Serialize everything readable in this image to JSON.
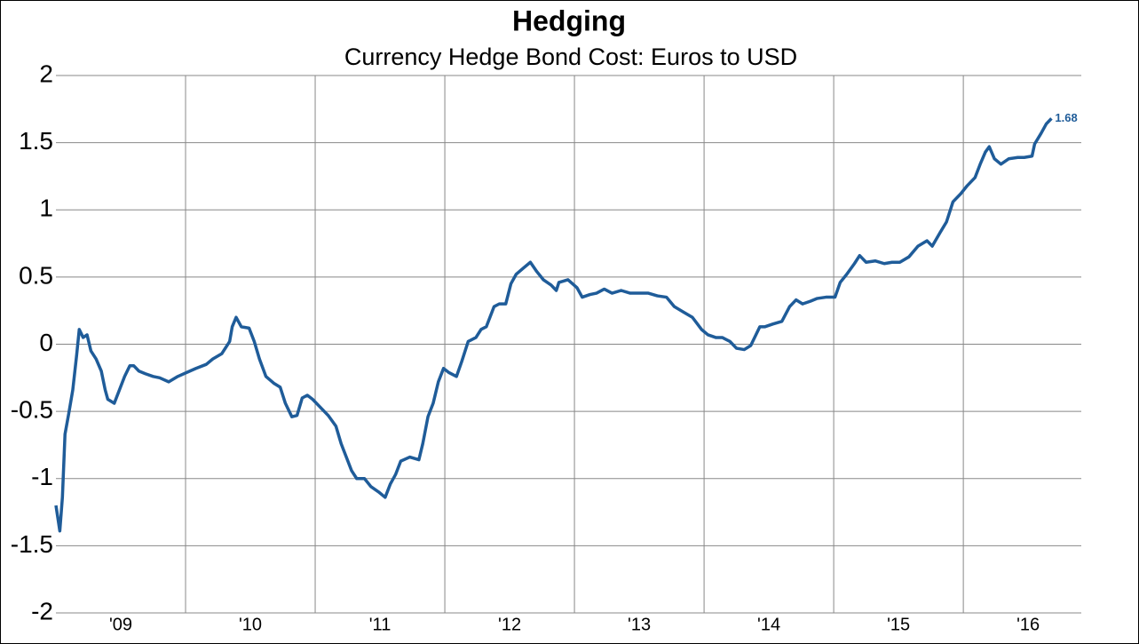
{
  "chart_data": {
    "type": "line",
    "title": "Hedging",
    "subtitle": "Currency Hedge Bond Cost: Euros to USD",
    "x": [
      2009.0,
      2009.03,
      2009.05,
      2009.07,
      2009.1,
      2009.13,
      2009.16,
      2009.18,
      2009.21,
      2009.24,
      2009.27,
      2009.31,
      2009.35,
      2009.38,
      2009.4,
      2009.45,
      2009.49,
      2009.53,
      2009.57,
      2009.6,
      2009.64,
      2009.69,
      2009.75,
      2009.8,
      2009.87,
      2009.94,
      2010.01,
      2010.08,
      2010.16,
      2010.21,
      2010.28,
      2010.34,
      2010.36,
      2010.39,
      2010.43,
      2010.49,
      2010.53,
      2010.57,
      2010.62,
      2010.68,
      2010.73,
      2010.77,
      2010.82,
      2010.86,
      2010.9,
      2010.94,
      2010.98,
      2011.03,
      2011.1,
      2011.16,
      2011.2,
      2011.24,
      2011.28,
      2011.32,
      2011.38,
      2011.43,
      2011.49,
      2011.54,
      2011.58,
      2011.62,
      2011.66,
      2011.73,
      2011.8,
      2011.83,
      2011.87,
      2011.91,
      2011.95,
      2011.99,
      2012.03,
      2012.09,
      2012.13,
      2012.18,
      2012.24,
      2012.28,
      2012.32,
      2012.38,
      2012.42,
      2012.47,
      2012.51,
      2012.55,
      2012.61,
      2012.66,
      2012.71,
      2012.76,
      2012.82,
      2012.86,
      2012.88,
      2012.95,
      2013.02,
      2013.06,
      2013.12,
      2013.17,
      2013.23,
      2013.29,
      2013.36,
      2013.43,
      2013.5,
      2013.57,
      2013.64,
      2013.71,
      2013.77,
      2013.84,
      2013.91,
      2013.98,
      2014.03,
      2014.09,
      2014.14,
      2014.2,
      2014.25,
      2014.31,
      2014.36,
      2014.43,
      2014.47,
      2014.53,
      2014.6,
      2014.66,
      2014.71,
      2014.76,
      2014.82,
      2014.87,
      2014.94,
      2015.01,
      2015.05,
      2015.1,
      2015.16,
      2015.2,
      2015.25,
      2015.32,
      2015.39,
      2015.45,
      2015.51,
      2015.58,
      2015.65,
      2015.72,
      2015.76,
      2015.82,
      2015.87,
      2015.92,
      2015.98,
      2016.03,
      2016.09,
      2016.13,
      2016.17,
      2016.2,
      2016.24,
      2016.29,
      2016.35,
      2016.42,
      2016.47,
      2016.53,
      2016.55,
      2016.6,
      2016.64,
      2016.68
    ],
    "series": [
      {
        "color": "#1f5c99",
        "values": [
          -1.2,
          -1.39,
          -1.14,
          -0.67,
          -0.51,
          -0.34,
          -0.08,
          0.11,
          0.05,
          0.07,
          -0.05,
          -0.11,
          -0.2,
          -0.34,
          -0.41,
          -0.44,
          -0.34,
          -0.24,
          -0.16,
          -0.16,
          -0.2,
          -0.22,
          -0.24,
          -0.25,
          -0.28,
          -0.24,
          -0.21,
          -0.18,
          -0.15,
          -0.11,
          -0.07,
          0.02,
          0.13,
          0.2,
          0.13,
          0.12,
          0.02,
          -0.11,
          -0.24,
          -0.29,
          -0.32,
          -0.44,
          -0.54,
          -0.53,
          -0.4,
          -0.38,
          -0.41,
          -0.46,
          -0.53,
          -0.61,
          -0.74,
          -0.84,
          -0.94,
          -1.0,
          -1.0,
          -1.06,
          -1.1,
          -1.14,
          -1.04,
          -0.97,
          -0.87,
          -0.84,
          -0.86,
          -0.74,
          -0.54,
          -0.44,
          -0.28,
          -0.18,
          -0.21,
          -0.24,
          -0.13,
          0.02,
          0.05,
          0.11,
          0.13,
          0.28,
          0.3,
          0.3,
          0.45,
          0.52,
          0.57,
          0.61,
          0.54,
          0.48,
          0.44,
          0.4,
          0.46,
          0.48,
          0.42,
          0.35,
          0.37,
          0.38,
          0.41,
          0.38,
          0.4,
          0.38,
          0.38,
          0.38,
          0.36,
          0.35,
          0.28,
          0.24,
          0.2,
          0.11,
          0.07,
          0.05,
          0.05,
          0.02,
          -0.03,
          -0.04,
          -0.01,
          0.13,
          0.13,
          0.15,
          0.17,
          0.28,
          0.33,
          0.3,
          0.32,
          0.34,
          0.35,
          0.35,
          0.46,
          0.52,
          0.6,
          0.66,
          0.61,
          0.62,
          0.6,
          0.61,
          0.61,
          0.65,
          0.73,
          0.77,
          0.73,
          0.83,
          0.91,
          1.06,
          1.12,
          1.18,
          1.24,
          1.34,
          1.43,
          1.47,
          1.38,
          1.34,
          1.38,
          1.39,
          1.39,
          1.4,
          1.49,
          1.57,
          1.64,
          1.68
        ]
      }
    ],
    "label_last": true,
    "xlim": [
      2009,
      2016.91
    ],
    "xticks": [
      {
        "value": 2009.5,
        "label": "'09"
      },
      {
        "value": 2010.5,
        "label": "'10"
      },
      {
        "value": 2011.5,
        "label": "'11"
      },
      {
        "value": 2012.5,
        "label": "'12"
      },
      {
        "value": 2013.5,
        "label": "'13"
      },
      {
        "value": 2014.5,
        "label": "'14"
      },
      {
        "value": 2015.5,
        "label": "'15"
      },
      {
        "value": 2016.5,
        "label": "'16"
      }
    ],
    "xgrid": [
      2010,
      2011,
      2012,
      2013,
      2014,
      2015,
      2016
    ],
    "ylim": [
      -2,
      2
    ],
    "yticks": [
      2,
      1.5,
      1,
      0.5,
      0,
      -0.5,
      -1,
      -1.5,
      -2
    ],
    "grid": true
  }
}
